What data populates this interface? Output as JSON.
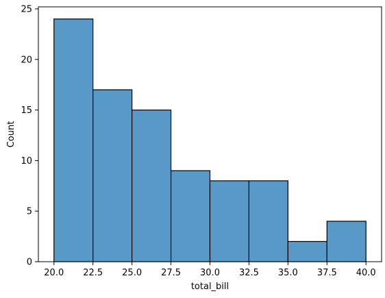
{
  "chart_data": {
    "type": "bar",
    "subtype": "histogram",
    "xlabel": "total_bill",
    "ylabel": "Count",
    "bin_edges": [
      20.0,
      22.5,
      25.0,
      27.5,
      30.0,
      32.5,
      35.0,
      37.5,
      40.0
    ],
    "counts": [
      24,
      17,
      15,
      9,
      8,
      8,
      2,
      4
    ],
    "xlim": [
      19.0,
      41.0
    ],
    "ylim": [
      0,
      25.2
    ],
    "xticks": [
      20.0,
      22.5,
      25.0,
      27.5,
      30.0,
      32.5,
      35.0,
      37.5,
      40.0
    ],
    "xtick_labels": [
      "20.0",
      "22.5",
      "25.0",
      "27.5",
      "30.0",
      "32.5",
      "35.0",
      "37.5",
      "40.0"
    ],
    "yticks": [
      0,
      5,
      10,
      15,
      20,
      25
    ],
    "ytick_labels": [
      "0",
      "5",
      "10",
      "15",
      "20",
      "25"
    ],
    "grid": false,
    "colors": {
      "bar_fill": "#5899c8",
      "bar_edge": "#000000",
      "axis": "#000000",
      "background": "#ffffff"
    }
  }
}
